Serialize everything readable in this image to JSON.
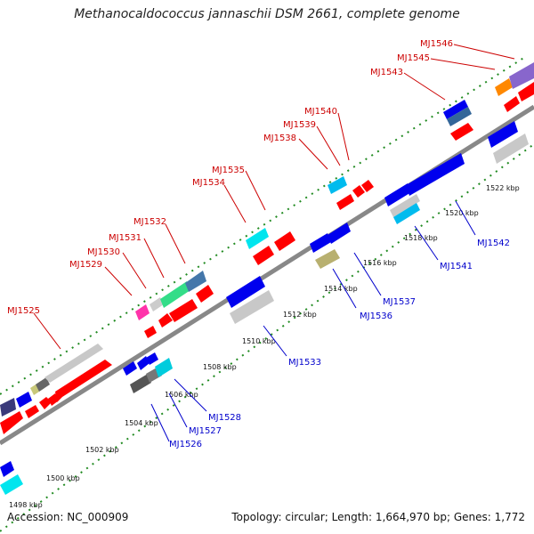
{
  "title": "Methanocaldococcus jannaschii DSM 2661, complete genome",
  "accession_text": "Accession: NC_000909",
  "topology_text": "Topology: circular; Length: 1,664,970 bp; Genes: 1,772",
  "colors": {
    "forward_label": "#cc0000",
    "reverse_label": "#0000cc",
    "backbone": "#888888",
    "tick_dots": "#228b22"
  },
  "ticks": [
    "1498 kbp",
    "1500 kbp",
    "1502 kbp",
    "1504 kbp",
    "1506 kbp",
    "1508 kbp",
    "1510 kbp",
    "1512 kbp",
    "1514 kbp",
    "1516 kbp",
    "1518 kbp",
    "1520 kbp",
    "1522 kbp"
  ],
  "forward_labels": [
    "MJ1525",
    "MJ1529",
    "MJ1530",
    "MJ1531",
    "MJ1532",
    "MJ1534",
    "MJ1535",
    "MJ1538",
    "MJ1539",
    "MJ1540",
    "MJ1543",
    "MJ1545",
    "MJ1546"
  ],
  "reverse_labels": [
    "MJ1526",
    "MJ1527",
    "MJ1528",
    "MJ1533",
    "MJ1536",
    "MJ1537",
    "MJ1541",
    "MJ1542"
  ]
}
